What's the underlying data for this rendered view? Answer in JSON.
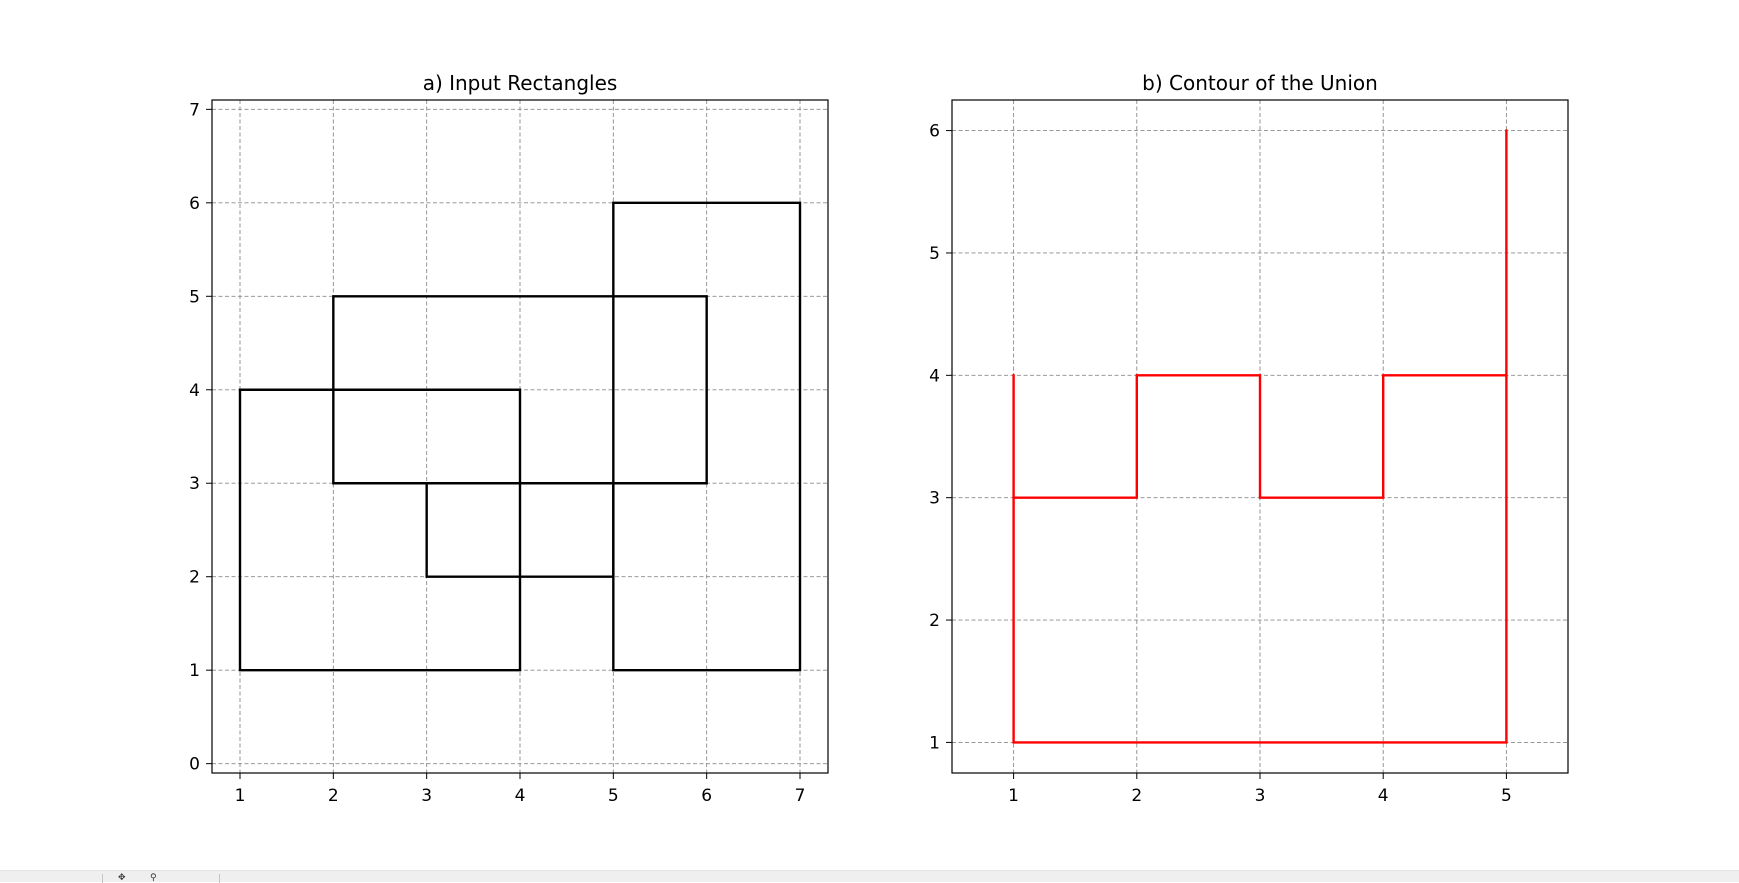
{
  "chart_data": [
    {
      "type": "line",
      "title": "a) Input Rectangles",
      "xlabel": "",
      "ylabel": "",
      "xlim": [
        0.7,
        7.3
      ],
      "ylim": [
        -0.1,
        7.1
      ],
      "xticks": [
        1,
        2,
        3,
        4,
        5,
        6,
        7
      ],
      "yticks": [
        0,
        1,
        2,
        3,
        4,
        5,
        6,
        7
      ],
      "grid": true,
      "line_color": "#000000",
      "series": [
        {
          "values": [
            [
              1,
              1
            ],
            [
              4,
              1
            ],
            [
              4,
              4
            ],
            [
              1,
              4
            ],
            [
              1,
              1
            ]
          ]
        },
        {
          "values": [
            [
              2,
              3
            ],
            [
              6,
              3
            ],
            [
              6,
              5
            ],
            [
              2,
              5
            ],
            [
              2,
              3
            ]
          ]
        },
        {
          "values": [
            [
              3,
              2
            ],
            [
              5,
              2
            ],
            [
              5,
              3
            ],
            [
              3,
              3
            ],
            [
              3,
              2
            ]
          ]
        },
        {
          "values": [
            [
              5,
              1
            ],
            [
              7,
              1
            ],
            [
              7,
              6
            ],
            [
              5,
              6
            ],
            [
              5,
              1
            ]
          ]
        }
      ]
    },
    {
      "type": "line",
      "title": "b) Contour of the Union",
      "xlabel": "",
      "ylabel": "",
      "xlim": [
        0.5,
        5.5
      ],
      "ylim": [
        0.75,
        6.25
      ],
      "xticks": [
        1,
        2,
        3,
        4,
        5
      ],
      "yticks": [
        1,
        2,
        3,
        4,
        5,
        6
      ],
      "grid": true,
      "line_color": "#ff0000",
      "series": [
        {
          "values": [
            [
              1,
              4
            ],
            [
              1,
              1
            ],
            [
              5,
              1
            ],
            [
              5,
              6
            ]
          ]
        },
        {
          "values": [
            [
              1,
              3
            ],
            [
              2,
              3
            ],
            [
              2,
              4
            ],
            [
              3,
              4
            ],
            [
              3,
              3
            ],
            [
              4,
              3
            ],
            [
              4,
              4
            ],
            [
              5,
              4
            ]
          ]
        }
      ]
    }
  ]
}
